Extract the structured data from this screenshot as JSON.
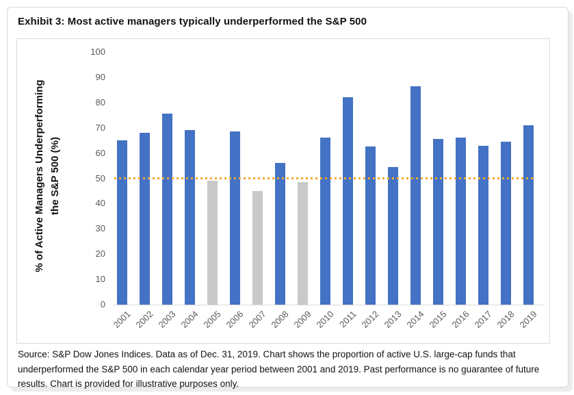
{
  "title": "Exhibit 3: Most active managers typically underperformed the S&P 500",
  "footer": {
    "text": "Source: S&P Dow Jones Indices.  Data as of Dec. 31, 2019.  Chart shows the proportion of active U.S. large-cap funds that underperformed the S&P 500 in each calendar year period between 2001 and 2019.  Past performance is no guarantee of future results.  Chart is provided for illustrative purposes only."
  },
  "chart_data": {
    "type": "bar",
    "title": "",
    "xlabel": "",
    "ylabel": "% of Active Managers Underperforming the S&P 500 (%)",
    "ylabel_line1": "% of Active Managers Underperforming",
    "ylabel_line2": "the S&P 500 (%)",
    "categories": [
      2001,
      2002,
      2003,
      2004,
      2005,
      2006,
      2007,
      2008,
      2009,
      2010,
      2011,
      2012,
      2013,
      2014,
      2015,
      2016,
      2017,
      2018,
      2019
    ],
    "values": [
      65,
      68,
      75.5,
      69,
      49,
      68.5,
      45,
      56,
      48.5,
      66,
      82,
      62.5,
      54.5,
      86.5,
      65.5,
      66,
      63,
      64.5,
      71
    ],
    "below_50_years": [
      2005,
      2007,
      2009
    ],
    "reference_line": {
      "value": 50,
      "style": "dotted",
      "color": "#F5A62B"
    },
    "ylim": [
      0,
      100
    ],
    "yticks": [
      0,
      10,
      20,
      30,
      40,
      50,
      60,
      70,
      80,
      90,
      100
    ],
    "grid": false,
    "legend": "none",
    "colors": {
      "bar_above": "#4472C4",
      "bar_below": "#C9C9C9",
      "axis_labels": "#595959",
      "axis_line": "#d9d9d9"
    }
  }
}
